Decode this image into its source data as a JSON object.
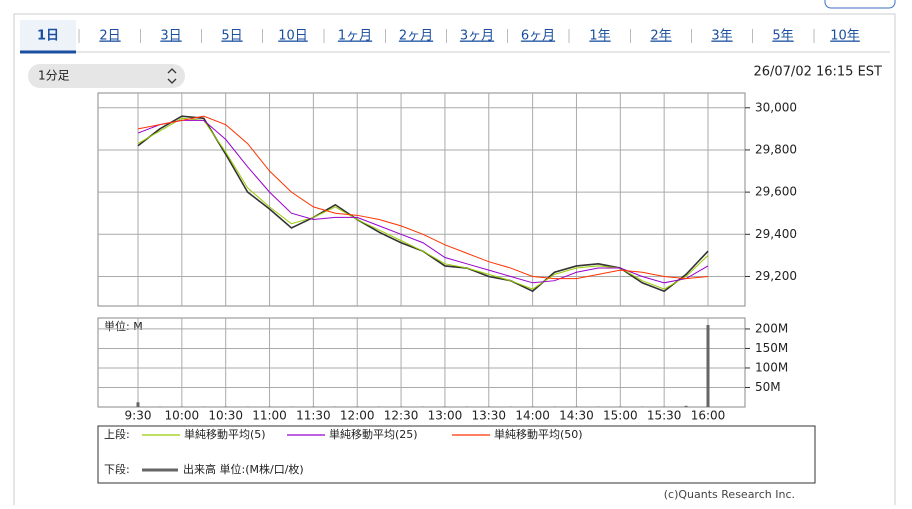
{
  "tabs": [
    "1日",
    "2日",
    "3日",
    "5日",
    "10日",
    "1ヶ月",
    "2ヶ月",
    "3ヶ月",
    "6ヶ月",
    "1年",
    "2年",
    "3年",
    "5年",
    "10年"
  ],
  "interval_select": "1分足",
  "timestamp": "26/07/02 16:15 EST",
  "credit": "(c)Quants Research Inc.",
  "chart_data": [
    {
      "type": "line",
      "legend_title": "上段:",
      "grid": true,
      "ylim": [
        29060,
        30070
      ],
      "yticks": [
        {
          "value": 29200,
          "label": "29,200"
        },
        {
          "value": 29400,
          "label": "29,400"
        },
        {
          "value": 29600,
          "label": "29,600"
        },
        {
          "value": 29800,
          "label": "29,800"
        },
        {
          "value": 30000,
          "label": "30,000"
        }
      ],
      "series": [
        {
          "color": "#333333",
          "values": [
            29820,
            29900,
            29960,
            29950,
            29780,
            29600,
            29520,
            29430,
            29480,
            29540,
            29470,
            29410,
            29360,
            29320,
            29250,
            29240,
            29200,
            29180,
            29130,
            29220,
            29250,
            29260,
            29240,
            29170,
            29130,
            29210,
            29320
          ]
        },
        {
          "name": "単純移動平均(5)",
          "color": "#99cc00",
          "values": [
            29830,
            29890,
            29950,
            29940,
            29790,
            29620,
            29530,
            29450,
            29480,
            29530,
            29470,
            29420,
            29370,
            29320,
            29260,
            29240,
            29210,
            29180,
            29140,
            29210,
            29240,
            29250,
            29240,
            29180,
            29140,
            29200,
            29300
          ]
        },
        {
          "name": "単純移動平均(25)",
          "color": "#9900cc",
          "values": [
            29880,
            29920,
            29940,
            29940,
            29850,
            29720,
            29600,
            29500,
            29470,
            29480,
            29480,
            29440,
            29400,
            29360,
            29290,
            29260,
            29230,
            29200,
            29170,
            29180,
            29220,
            29240,
            29240,
            29200,
            29170,
            29190,
            29250
          ]
        },
        {
          "name": "単純移動平均(50)",
          "color": "#ff3300",
          "values": [
            29900,
            29920,
            29940,
            29960,
            29920,
            29830,
            29700,
            29600,
            29530,
            29500,
            29490,
            29470,
            29440,
            29400,
            29350,
            29310,
            29270,
            29240,
            29200,
            29190,
            29190,
            29210,
            29230,
            29220,
            29200,
            29190,
            29200
          ]
        }
      ]
    },
    {
      "type": "bar",
      "legend_title": "下段:",
      "unit_label": "単位: M",
      "grid": true,
      "categories": [
        "9:30",
        null,
        "10:00",
        null,
        "10:30",
        null,
        "11:00",
        null,
        "11:30",
        null,
        "12:00",
        null,
        "12:30",
        null,
        "13:00",
        null,
        "13:30",
        null,
        "14:00",
        null,
        "14:30",
        null,
        "15:00",
        null,
        "15:30",
        null,
        "16:00"
      ],
      "ylim": [
        0,
        228
      ],
      "yticks": [
        {
          "value": 50,
          "label": "50M"
        },
        {
          "value": 100,
          "label": "100M"
        },
        {
          "value": 150,
          "label": "150M"
        },
        {
          "value": 200,
          "label": "200M"
        }
      ],
      "series": [
        {
          "name": "出来高 単位:(M株/口/枚)",
          "color": "#666666",
          "values": [
            12,
            1,
            1,
            1,
            1,
            1,
            1,
            1,
            1,
            1,
            1,
            1,
            1,
            1,
            1,
            1,
            1,
            1,
            1,
            1,
            1,
            1,
            1,
            1,
            1,
            3,
            210
          ]
        }
      ]
    }
  ]
}
